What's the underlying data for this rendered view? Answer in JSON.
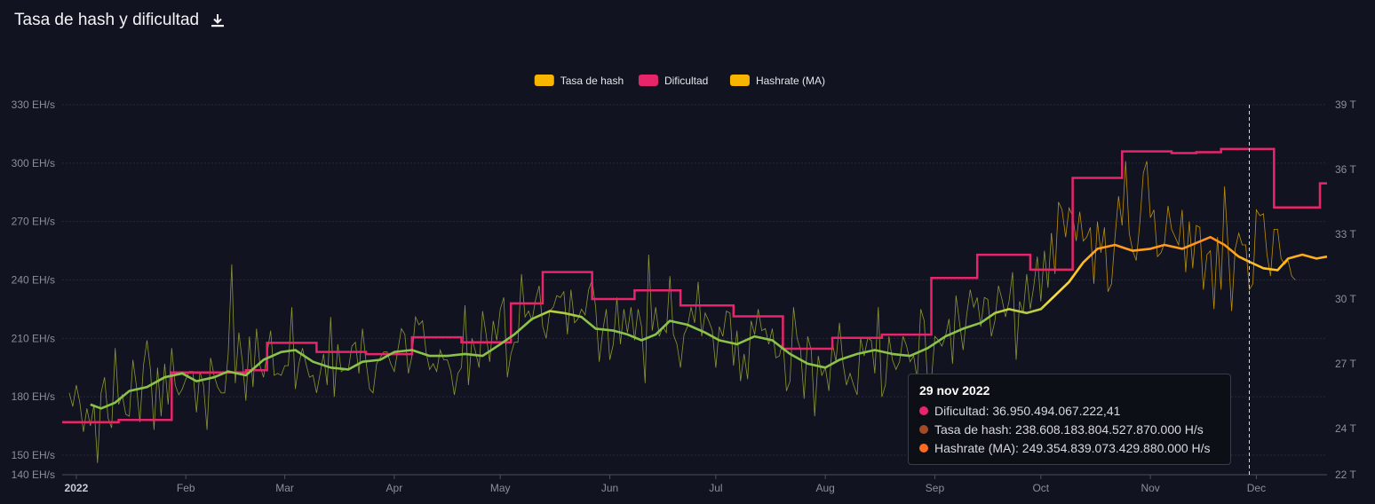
{
  "header": {
    "title": "Tasa de hash y dificultad",
    "download_icon": "download-icon"
  },
  "colors": {
    "background": "#111420",
    "hashrate": "#f7b500",
    "hashrate_line": "#b5c23a",
    "difficulty": "#e8256b",
    "ma_low": "#8bc34a",
    "ma_mid": "#ffe135",
    "ma_high": "#ff8f1f"
  },
  "chart_data": {
    "type": "line",
    "title": "Tasa de hash y dificultad",
    "legend": [
      {
        "name": "Tasa de hash",
        "color": "#f7b500"
      },
      {
        "name": "Dificultad",
        "color": "#e8256b"
      },
      {
        "name": "Hashrate (MA)",
        "color": "#f7b500"
      }
    ],
    "legend_position": "top-center",
    "x_axis": {
      "range": [
        "2021-12-28",
        "2022-12-21"
      ],
      "tick_labels": [
        {
          "label": "2022",
          "date": "2022-01-01",
          "bold": true
        },
        {
          "label": "Feb",
          "date": "2022-02-01"
        },
        {
          "label": "Mar",
          "date": "2022-03-01"
        },
        {
          "label": "Apr",
          "date": "2022-04-01"
        },
        {
          "label": "May",
          "date": "2022-05-01"
        },
        {
          "label": "Jun",
          "date": "2022-06-01"
        },
        {
          "label": "Jul",
          "date": "2022-07-01"
        },
        {
          "label": "Aug",
          "date": "2022-08-01"
        },
        {
          "label": "Sep",
          "date": "2022-09-01"
        },
        {
          "label": "Oct",
          "date": "2022-10-01"
        },
        {
          "label": "Nov",
          "date": "2022-11-01"
        },
        {
          "label": "Dec",
          "date": "2022-12-01"
        }
      ]
    },
    "y_left": {
      "unit": "EH/s",
      "range": [
        140,
        330
      ],
      "tick_values": [
        140,
        150,
        180,
        210,
        240,
        270,
        300,
        330
      ],
      "tick_labels": [
        "140 EH/s",
        "150 EH/s",
        "180 EH/s",
        "210 EH/s",
        "240 EH/s",
        "270 EH/s",
        "300 EH/s",
        "330 EH/s"
      ]
    },
    "y_right": {
      "unit": "T",
      "range": [
        22,
        39
      ],
      "tick_values": [
        22,
        24,
        27,
        30,
        33,
        36,
        39
      ],
      "tick_labels": [
        "22 T",
        "24 T",
        "27 T",
        "30 T",
        "33 T",
        "36 T",
        "39 T"
      ]
    },
    "grid": true,
    "series": [
      {
        "name": "Dificultad",
        "axis": "right",
        "step": true,
        "color": "#e8256b",
        "points": [
          [
            "2021-12-28",
            24.3
          ],
          [
            "2022-01-13",
            24.4
          ],
          [
            "2022-01-28",
            26.6
          ],
          [
            "2022-02-18",
            26.7
          ],
          [
            "2022-02-24",
            27.97
          ],
          [
            "2022-03-10",
            27.55
          ],
          [
            "2022-03-24",
            27.45
          ],
          [
            "2022-04-06",
            28.23
          ],
          [
            "2022-04-20",
            28.0
          ],
          [
            "2022-05-04",
            29.8
          ],
          [
            "2022-05-13",
            31.25
          ],
          [
            "2022-05-27",
            30.0
          ],
          [
            "2022-06-08",
            30.4
          ],
          [
            "2022-06-21",
            29.7
          ],
          [
            "2022-07-06",
            29.2
          ],
          [
            "2022-07-20",
            27.7
          ],
          [
            "2022-08-03",
            28.2
          ],
          [
            "2022-08-17",
            28.35
          ],
          [
            "2022-08-31",
            30.98
          ],
          [
            "2022-09-13",
            32.05
          ],
          [
            "2022-09-28",
            31.36
          ],
          [
            "2022-10-10",
            35.61
          ],
          [
            "2022-10-24",
            36.84
          ],
          [
            "2022-11-07",
            36.76
          ],
          [
            "2022-11-14",
            36.8
          ],
          [
            "2022-11-21",
            36.95
          ],
          [
            "2022-12-06",
            34.24
          ],
          [
            "2022-12-19",
            35.36
          ],
          [
            "2022-12-21",
            35.36
          ]
        ]
      },
      {
        "name": "Hashrate (MA)",
        "axis": "left",
        "colors_by_level": {
          "low": "#8bc34a",
          "mid": "#ffe135",
          "high": "#ff8f1f"
        },
        "points": [
          [
            "2022-01-05",
            176
          ],
          [
            "2022-01-08",
            174
          ],
          [
            "2022-01-12",
            177
          ],
          [
            "2022-01-16",
            183
          ],
          [
            "2022-01-21",
            185
          ],
          [
            "2022-01-26",
            190
          ],
          [
            "2022-01-31",
            192
          ],
          [
            "2022-02-04",
            188
          ],
          [
            "2022-02-09",
            190
          ],
          [
            "2022-02-13",
            193
          ],
          [
            "2022-02-18",
            191
          ],
          [
            "2022-02-23",
            199
          ],
          [
            "2022-02-28",
            203
          ],
          [
            "2022-03-04",
            204
          ],
          [
            "2022-03-09",
            198
          ],
          [
            "2022-03-14",
            195
          ],
          [
            "2022-03-19",
            194
          ],
          [
            "2022-03-23",
            198
          ],
          [
            "2022-03-28",
            199
          ],
          [
            "2022-04-01",
            203
          ],
          [
            "2022-04-06",
            204
          ],
          [
            "2022-04-11",
            201
          ],
          [
            "2022-04-16",
            201
          ],
          [
            "2022-04-21",
            202
          ],
          [
            "2022-04-26",
            201
          ],
          [
            "2022-05-01",
            207
          ],
          [
            "2022-05-05",
            212
          ],
          [
            "2022-05-10",
            220
          ],
          [
            "2022-05-15",
            224
          ],
          [
            "2022-05-19",
            223
          ],
          [
            "2022-05-24",
            221
          ],
          [
            "2022-05-28",
            215
          ],
          [
            "2022-06-02",
            214
          ],
          [
            "2022-06-06",
            212
          ],
          [
            "2022-06-10",
            209
          ],
          [
            "2022-06-14",
            212
          ],
          [
            "2022-06-18",
            219
          ],
          [
            "2022-06-23",
            217
          ],
          [
            "2022-06-28",
            213
          ],
          [
            "2022-07-02",
            209
          ],
          [
            "2022-07-07",
            207
          ],
          [
            "2022-07-12",
            211
          ],
          [
            "2022-07-17",
            209
          ],
          [
            "2022-07-22",
            202
          ],
          [
            "2022-07-27",
            197
          ],
          [
            "2022-08-01",
            195
          ],
          [
            "2022-08-05",
            199
          ],
          [
            "2022-08-10",
            202
          ],
          [
            "2022-08-15",
            204
          ],
          [
            "2022-08-20",
            202
          ],
          [
            "2022-08-25",
            201
          ],
          [
            "2022-08-30",
            205
          ],
          [
            "2022-09-04",
            211
          ],
          [
            "2022-09-09",
            215
          ],
          [
            "2022-09-14",
            218
          ],
          [
            "2022-09-18",
            223
          ],
          [
            "2022-09-22",
            225
          ],
          [
            "2022-09-27",
            223
          ],
          [
            "2022-10-01",
            225
          ],
          [
            "2022-10-05",
            232
          ],
          [
            "2022-10-09",
            239
          ],
          [
            "2022-10-13",
            249
          ],
          [
            "2022-10-17",
            256
          ],
          [
            "2022-10-22",
            258
          ],
          [
            "2022-10-27",
            255
          ],
          [
            "2022-11-01",
            256
          ],
          [
            "2022-11-05",
            258
          ],
          [
            "2022-11-10",
            256
          ],
          [
            "2022-11-14",
            259
          ],
          [
            "2022-11-18",
            262
          ],
          [
            "2022-11-22",
            258
          ],
          [
            "2022-11-26",
            252
          ],
          [
            "2022-11-29",
            249.35
          ],
          [
            "2022-12-03",
            246
          ],
          [
            "2022-12-07",
            245
          ],
          [
            "2022-12-10",
            251
          ],
          [
            "2022-12-14",
            253
          ],
          [
            "2022-12-18",
            251
          ],
          [
            "2022-12-21",
            252
          ]
        ]
      },
      {
        "name": "Tasa de hash",
        "axis": "left",
        "color": "#f7b500",
        "approximate": true,
        "daily_values_from": "2021-12-30",
        "values": [
          182,
          175,
          186,
          177,
          162,
          174,
          165,
          176,
          146,
          182,
          190,
          169,
          164,
          205,
          176,
          181,
          171,
          170,
          199,
          186,
          167,
          196,
          209,
          194,
          163,
          195,
          170,
          197,
          176,
          205,
          186,
          181,
          184,
          189,
          193,
          193,
          172,
          193,
          186,
          163,
          200,
          191,
          185,
          182,
          182,
          202,
          248,
          187,
          213,
          198,
          178,
          211,
          185,
          215,
          196,
          190,
          202,
          214,
          191,
          192,
          191,
          196,
          196,
          226,
          184,
          197,
          205,
          197,
          190,
          191,
          182,
          192,
          202,
          186,
          221,
          180,
          207,
          193,
          194,
          194,
          206,
          208,
          192,
          215,
          198,
          184,
          182,
          197,
          200,
          203,
          203,
          197,
          193,
          204,
          215,
          212,
          192,
          201,
          221,
          217,
          219,
          203,
          194,
          197,
          193,
          204,
          199,
          199,
          193,
          181,
          192,
          195,
          227,
          186,
          210,
          203,
          195,
          224,
          212,
          198,
          219,
          209,
          225,
          231,
          190,
          202,
          208,
          208,
          243,
          221,
          224,
          219,
          230,
          237,
          216,
          210,
          224,
          226,
          232,
          231,
          234,
          212,
          235,
          218,
          220,
          225,
          222,
          235,
          240,
          226,
          198,
          214,
          225,
          199,
          207,
          231,
          207,
          225,
          213,
          226,
          209,
          225,
          216,
          187,
          253,
          214,
          226,
          211,
          216,
          213,
          242,
          212,
          207,
          195,
          212,
          216,
          226,
          218,
          239,
          211,
          223,
          219,
          214,
          195,
          216,
          211,
          224,
          223,
          196,
          214,
          188,
          202,
          189,
          219,
          212,
          225,
          214,
          215,
          207,
          215,
          200,
          201,
          209,
          183,
          188,
          226,
          210,
          204,
          179,
          211,
          204,
          170,
          201,
          191,
          195,
          183,
          208,
          198,
          218,
          197,
          186,
          192,
          186,
          181,
          210,
          201,
          210,
          209,
          192,
          226,
          180,
          186,
          211,
          199,
          194,
          198,
          211,
          206,
          198,
          201,
          189,
          225,
          219,
          186,
          188,
          211,
          209,
          206,
          211,
          220,
          197,
          232,
          218,
          204,
          222,
          235,
          226,
          231,
          216,
          231,
          230,
          211,
          219,
          237,
          230,
          221,
          229,
          244,
          199,
          229,
          223,
          243,
          225,
          237,
          252,
          229,
          255,
          236,
          264,
          243,
          280,
          276,
          262,
          277,
          273,
          260,
          275,
          260,
          262,
          267,
          238,
          270,
          254,
          267,
          234,
          238,
          262,
          283,
          268,
          301,
          264,
          255,
          250,
          269,
          295,
          301,
          272,
          276,
          252,
          254,
          259,
          278,
          266,
          262,
          258,
          276,
          244,
          270,
          246,
          268,
          267,
          235,
          253,
          255,
          225,
          262,
          235,
          288,
          257,
          224,
          256,
          264,
          258,
          258,
          235,
          238,
          276,
          273,
          274,
          253,
          242,
          266,
          266,
          251,
          248,
          250,
          242,
          240
        ]
      }
    ],
    "cursor": {
      "date": "2022-11-29"
    },
    "tooltip": {
      "title": "29 nov 2022",
      "rows": [
        {
          "label": "Dificultad: 36.950.494.067.222,41",
          "color": "#e8256b"
        },
        {
          "label": "Tasa de hash: 238.608.183.804.527.870.000 H/s",
          "color": "#a34a2a"
        },
        {
          "label": "Hashrate (MA): 249.354.839.073.429.880.000 H/s",
          "color": "#ff6a1f"
        }
      ]
    }
  }
}
